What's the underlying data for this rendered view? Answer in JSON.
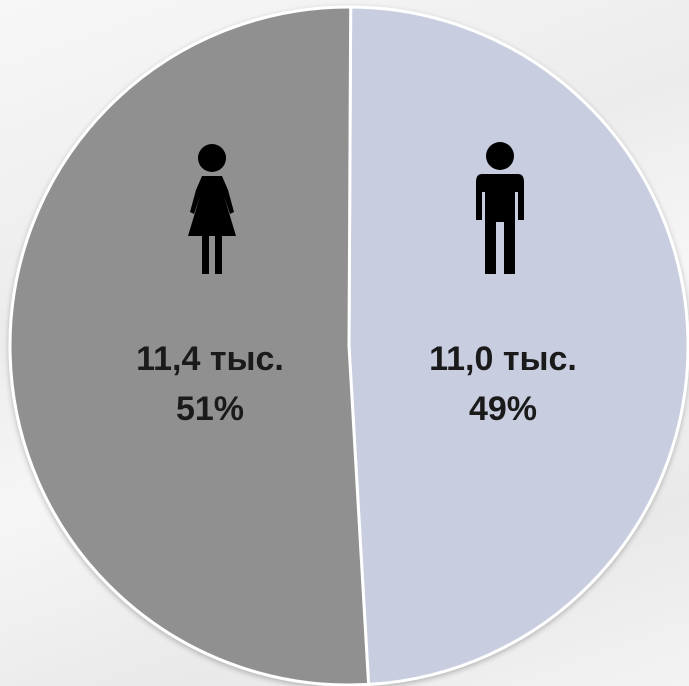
{
  "chart_data": {
    "type": "pie",
    "title": "",
    "slices": [
      {
        "category": "female",
        "icon": "female-icon",
        "value_label": "11,4 тыс.",
        "percent_label": "51%",
        "value": 11.4,
        "percent": 51,
        "color": "#909090"
      },
      {
        "category": "male",
        "icon": "male-icon",
        "value_label": "11,0 тыс.",
        "percent_label": "49%",
        "value": 11.0,
        "percent": 49,
        "color": "#c8cde0"
      }
    ],
    "border_color": "#ffffff",
    "icon_color": "#000000"
  }
}
